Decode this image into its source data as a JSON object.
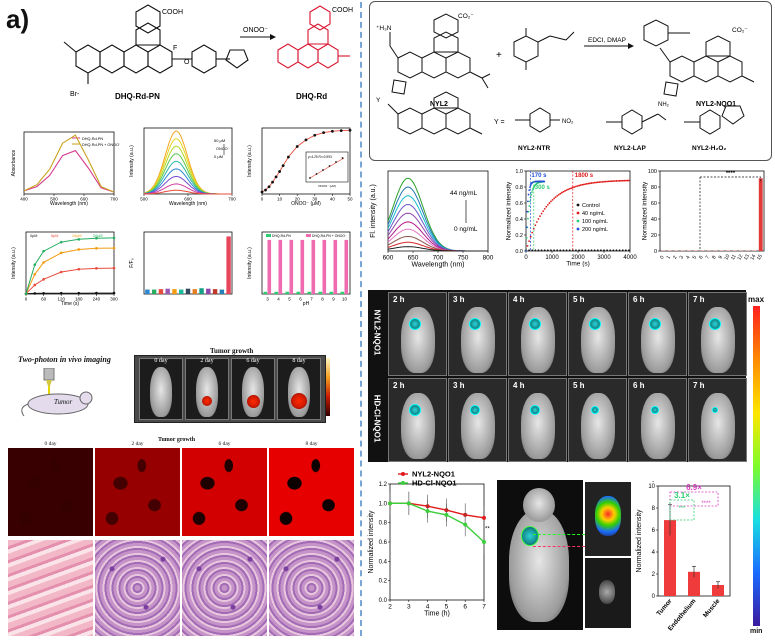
{
  "panel_a": {
    "tag": "a)",
    "scheme": {
      "left_compound": "DHQ-Rd-PN",
      "right_compound": "DHQ-Rd",
      "arrow_label": "ONOO⁻",
      "counter_ion": "Br-",
      "cooh": "COOH",
      "f": "F",
      "o": "O"
    },
    "chart_abs": {
      "type": "line",
      "xlabel": "Wavelength (nm)",
      "ylabel": "Absorbance",
      "legend": [
        "DHQ-Rd-PN",
        "DHQ-Rd-PN + ONOO⁻"
      ],
      "xticks": [
        "400",
        "500",
        "600",
        "700"
      ],
      "series": [
        {
          "name": "DHQ-Rd-PN",
          "values": [
            0.05,
            0.12,
            0.3,
            0.62,
            0.7,
            0.42,
            0.1,
            0.03
          ]
        },
        {
          "name": "DHQ-Rd-PN + ONOO⁻",
          "values": [
            0.05,
            0.15,
            0.4,
            0.82,
            0.95,
            0.55,
            0.12,
            0.03
          ]
        }
      ],
      "colors": [
        "#d63c8f",
        "#c9a11c"
      ]
    },
    "chart_fl": {
      "type": "line",
      "xlabel": "Wavelength (nm)",
      "ylabel": "Intensity (a.u.)",
      "note_top": "50 μM",
      "note_bottom": "0 μM",
      "note_ion": "ONOO⁻",
      "xticks": [
        "500",
        "600",
        "700"
      ],
      "peaks": [
        1000,
        880,
        760,
        640,
        520,
        400,
        280,
        160,
        60
      ],
      "colors": [
        "#f5a623",
        "#e8d31b",
        "#b6d927",
        "#5cc74a",
        "#2bb7a3",
        "#2a87d6",
        "#7a4ccf",
        "#d13ca1",
        "#e74c3c"
      ]
    },
    "chart_conc": {
      "type": "scatter",
      "xlabel": "ONOO⁻ (μM)",
      "ylabel": "Intensity (a.u.)",
      "x": [
        0,
        2,
        4,
        6,
        8,
        10,
        12,
        15,
        20,
        25,
        30,
        35,
        40,
        45,
        50
      ],
      "y": [
        30,
        60,
        110,
        180,
        260,
        340,
        430,
        560,
        720,
        820,
        890,
        930,
        950,
        960,
        965
      ],
      "inset_text": "y=4.25 R²=0.993",
      "inset_xlabel": "ONOO⁻ (μM)",
      "xticks": [
        "0",
        "10",
        "20",
        "30",
        "40",
        "50"
      ]
    },
    "chart_time": {
      "type": "line",
      "xlabel": "Time (s)",
      "ylabel": "Intensity (a.u.)",
      "legend": [
        "0μM",
        "5μM",
        "10μM",
        "20μM"
      ],
      "x": [
        0,
        30,
        60,
        120,
        180,
        240,
        300
      ],
      "series": [
        {
          "name": "0μM",
          "values": [
            5,
            10,
            12,
            14,
            15,
            16,
            16
          ]
        },
        {
          "name": "5μM",
          "values": [
            5,
            160,
            260,
            390,
            440,
            455,
            460
          ]
        },
        {
          "name": "10μM",
          "values": [
            5,
            350,
            560,
            730,
            790,
            810,
            815
          ]
        },
        {
          "name": "20μM",
          "values": [
            5,
            520,
            760,
            920,
            970,
            990,
            995
          ]
        }
      ],
      "colors": [
        "#111111",
        "#e74c3c",
        "#f39c12",
        "#27ae60"
      ],
      "xticks": [
        "0",
        "60",
        "120",
        "180",
        "240",
        "300"
      ]
    },
    "chart_sel": {
      "type": "bar",
      "ylabel": "F/F₀",
      "values": [
        1,
        1,
        1.1,
        1.2,
        1.1,
        1.0,
        1.2,
        1.1,
        1.3,
        1.2,
        1.1,
        1.0,
        13
      ],
      "colors": [
        "#2a87d6",
        "#27ae60",
        "#e74c3c",
        "#9b59b6",
        "#f39c12",
        "#1abc9c",
        "#34495e",
        "#e67e22",
        "#16a085",
        "#8e44ad",
        "#c0392b",
        "#2980b9",
        "#e8455a"
      ]
    },
    "chart_ph": {
      "type": "bar",
      "xlabel": "pH",
      "ylabel": "Intensity (a.u.)",
      "legend": [
        "DHQ-Rd-PN",
        "DHQ-Rd-PN + ONOO⁻"
      ],
      "categories": [
        "3",
        "4",
        "5",
        "6",
        "7",
        "8",
        "9",
        "10"
      ],
      "series": [
        {
          "name": "DHQ-Rd-PN",
          "values": [
            40,
            40,
            40,
            40,
            40,
            40,
            40,
            40
          ]
        },
        {
          "name": "DHQ-Rd-PN + ONOO⁻",
          "values": [
            960,
            960,
            960,
            960,
            960,
            960,
            960,
            960
          ]
        }
      ],
      "colors": [
        "#2ecc71",
        "#f06ab0"
      ]
    },
    "imaging": {
      "title": "Two-photon in vivo imaging",
      "tumor_label": "Tumor",
      "tumor_growth": "Tumor growth",
      "days": [
        "0 day",
        "2 day",
        "6 day",
        "8 day"
      ],
      "micro_title": "Tumor growth"
    }
  },
  "panel_b": {
    "tag": "b)",
    "scheme": {
      "nyl2": "NYL2",
      "product": "NYL2-NQO1",
      "reagent": "EDCI, DMAP",
      "y_eq": "Y =",
      "probes": [
        "NYL2-NTR",
        "NYL2-LAP",
        "NYL2-H₂O₂"
      ],
      "amine": "⁺H₃N",
      "co2": "CO₂⁻",
      "y_label": "Y"
    },
    "chart_fl": {
      "type": "line",
      "xlabel": "Wavelength (nm)",
      "ylabel": "Fl. intensity (a.u.)",
      "note_top": "44 ng/mL",
      "note_bottom": "0 ng/mL",
      "xticks": [
        "600",
        "650",
        "700",
        "750",
        "800"
      ],
      "peaks": [
        100,
        88,
        76,
        64,
        52,
        40,
        30,
        20,
        12,
        6
      ],
      "colors": [
        "#2ca02c",
        "#1f77b4",
        "#17becf",
        "#6a5acd",
        "#8e44ad",
        "#b5178b",
        "#e377c2",
        "#8c564b",
        "#d62728",
        "#222222"
      ]
    },
    "chart_kin": {
      "type": "scatter",
      "xlabel": "Time (s)",
      "ylabel": "Normalized intensity",
      "legend": [
        "Control",
        "40 ng/mL",
        "100 ng/mL",
        "200 ng/mL"
      ],
      "colors": [
        "#111111",
        "#e01b1b",
        "#2ecc71",
        "#1f4fd6"
      ],
      "annotations": [
        "170 s",
        "300 s",
        "1800 s"
      ],
      "xticks": [
        "0",
        "1000",
        "2000",
        "3000",
        "4000"
      ],
      "yticks": [
        "0.0",
        "0.2",
        "0.4",
        "0.6",
        "0.8",
        "1.0"
      ]
    },
    "chart_sel": {
      "type": "bar",
      "ylabel": "Normalized intensity",
      "categories": [
        "0",
        "1",
        "2",
        "3",
        "4",
        "5",
        "6",
        "7",
        "8",
        "9",
        "10",
        "11",
        "12",
        "13",
        "14",
        "15"
      ],
      "values": [
        1,
        1,
        1,
        1,
        1,
        1,
        1,
        1,
        1,
        1,
        1,
        1,
        1,
        1,
        1,
        100
      ],
      "significance": "****",
      "yticks": [
        "0",
        "20",
        "40",
        "60",
        "80",
        "100"
      ]
    },
    "imaging": {
      "rows": [
        "NYL2-NQO1",
        "HD-Cl-NQO1"
      ],
      "times": [
        "2 h",
        "3 h",
        "4 h",
        "5 h",
        "6 h",
        "7 h"
      ],
      "scale_max": "max",
      "scale_min": "min"
    },
    "chart_time": {
      "type": "line",
      "xlabel": "Time (h)",
      "ylabel": "Normalized intensity",
      "x": [
        2,
        3,
        4,
        5,
        6,
        7
      ],
      "series": [
        {
          "name": "NYL2-NQO1",
          "values": [
            1.0,
            1.0,
            0.97,
            0.93,
            0.88,
            0.85
          ]
        },
        {
          "name": "HD-Cl-NQO1",
          "values": [
            1.0,
            1.0,
            0.92,
            0.88,
            0.78,
            0.6
          ]
        }
      ],
      "colors": [
        "#e01b1b",
        "#3ccf3c"
      ],
      "xticks": [
        "2",
        "3",
        "4",
        "5",
        "6",
        "7"
      ],
      "yticks": [
        "0.0",
        "0.2",
        "0.4",
        "0.6",
        "0.8",
        "1.0",
        "1.2"
      ],
      "sig": "**"
    },
    "chart_tissue": {
      "type": "bar",
      "ylabel": "Normalized intensity",
      "categories": [
        "Tumor",
        "Endothelium",
        "Muscle"
      ],
      "values": [
        6.9,
        2.2,
        1.0
      ],
      "fold1": "3.1×",
      "fold2": "6.9×",
      "sig1": "***",
      "sig2": "****",
      "yticks": [
        "0",
        "2",
        "4",
        "6",
        "8",
        "10"
      ],
      "dot": "."
    }
  }
}
